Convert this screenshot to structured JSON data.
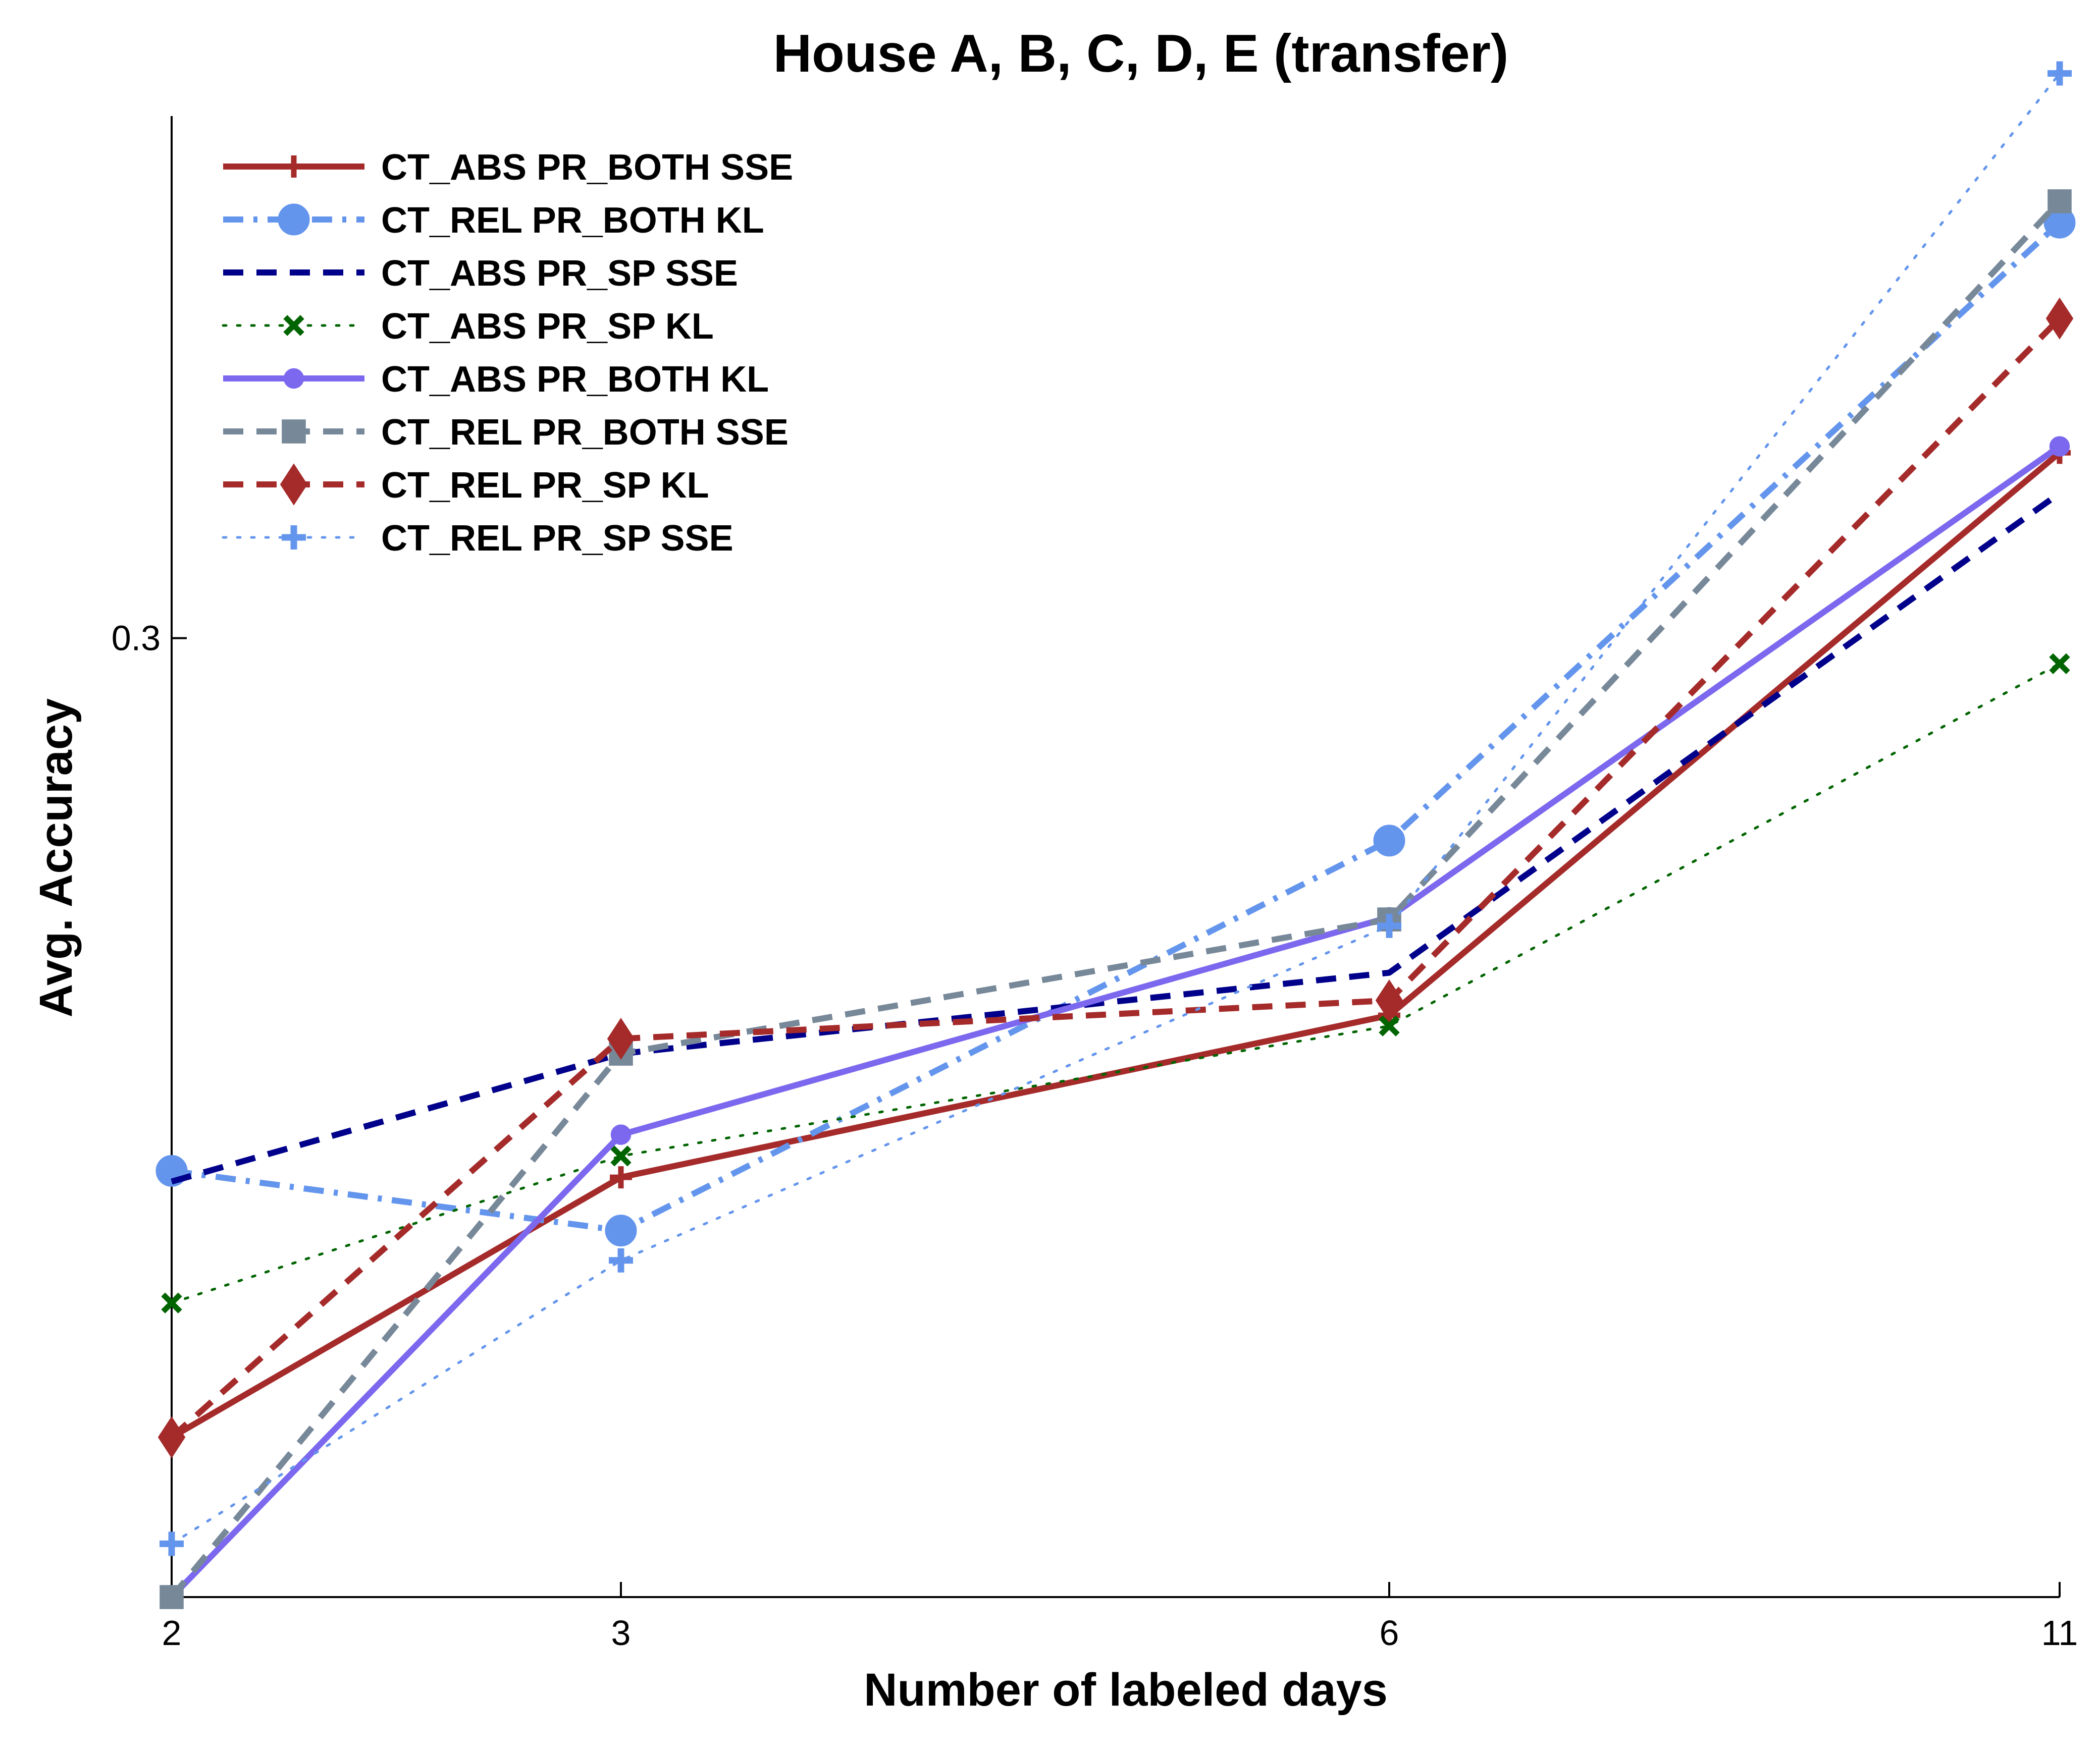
{
  "chart_data": {
    "type": "line",
    "title": "House A, B, C, D, E (transfer)",
    "xlabel": "Number of labeled days",
    "ylabel": "Avg. Accuracy",
    "x": [
      "2",
      "3",
      "6",
      "11"
    ],
    "y_tick_labels": [
      {
        "value": 0.3,
        "label": "0.3"
      }
    ],
    "ylim": [
      0.255,
      0.3245
    ],
    "grid": false,
    "legend_position": "top-left",
    "series": [
      {
        "name": "CT_ABS PR_BOTH SSE",
        "values": [
          0.2625,
          0.2747,
          0.2823,
          0.3087
        ],
        "color": "#a52a2a",
        "dash": "solid",
        "marker": "plus-thick",
        "width": 12
      },
      {
        "name": "CT_REL PR_BOTH KL",
        "values": [
          0.275,
          0.2722,
          0.2905,
          0.3195
        ],
        "color": "#6495ed",
        "dash": "dashdot",
        "marker": "circle",
        "width": 12
      },
      {
        "name": "CT_ABS PR_SP SSE",
        "values": [
          0.2745,
          0.2805,
          0.2843,
          0.3068
        ],
        "color": "#00008b",
        "dash": "dashed",
        "marker": "none",
        "width": 12
      },
      {
        "name": "CT_ABS PR_SP KL",
        "values": [
          0.2688,
          0.2757,
          0.2818,
          0.2988
        ],
        "color": "#006400",
        "dash": "dotted",
        "marker": "x",
        "width": 5
      },
      {
        "name": "CT_ABS PR_BOTH KL",
        "values": [
          0.255,
          0.2767,
          0.2869,
          0.309
        ],
        "color": "#7b68ee",
        "dash": "solid",
        "marker": "dot",
        "width": 12
      },
      {
        "name": "CT_REL PR_BOTH SSE",
        "values": [
          0.255,
          0.2805,
          0.2868,
          0.3205
        ],
        "color": "#778899",
        "dash": "dashed",
        "marker": "square",
        "width": 12
      },
      {
        "name": "CT_REL PR_SP KL",
        "values": [
          0.2625,
          0.2812,
          0.283,
          0.315
        ],
        "color": "#a52a2a",
        "dash": "dashed",
        "marker": "diamond",
        "width": 12
      },
      {
        "name": "CT_REL PR_SP SSE",
        "values": [
          0.2575,
          0.2708,
          0.2865,
          0.3265
        ],
        "color": "#6495ed",
        "dash": "dotted",
        "marker": "plus",
        "width": 5
      }
    ]
  }
}
